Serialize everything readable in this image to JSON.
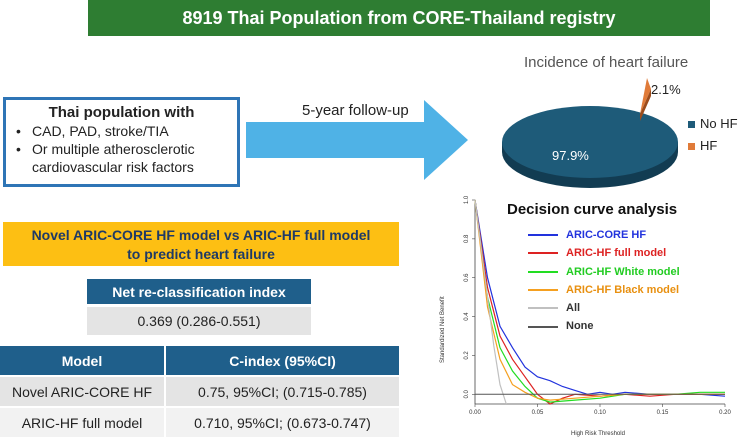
{
  "title": "8919 Thai Population from CORE-Thailand registry",
  "population": {
    "heading": "Thai population with",
    "items": [
      "CAD, PAD, stroke/TIA",
      "Or multiple atherosclerotic cardiovascular risk factors"
    ]
  },
  "followup": "5-year follow-up",
  "incidence": {
    "title": "Incidence of heart failure",
    "slices": [
      {
        "name": "No HF",
        "value": 97.9,
        "label": "97.9%",
        "color": "#1e5b79"
      },
      {
        "name": "HF",
        "value": 2.1,
        "label": "2.1%",
        "color": "#e07b39"
      }
    ]
  },
  "comparison": {
    "line1": "Novel ARIC-CORE HF model vs ARIC-HF full model",
    "line2": "to predict heart failure"
  },
  "nri": {
    "header": "Net re-classification index",
    "value": "0.369 (0.286-0.551)"
  },
  "cindex": {
    "headers": [
      "Model",
      "C-index (95%CI)"
    ],
    "rows": [
      {
        "model": "Novel ARIC-CORE HF",
        "value": "0.75, 95%CI; (0.715-0.785)"
      },
      {
        "model": "ARIC-HF full model",
        "value": "0.710, 95%CI; (0.673-0.747)"
      }
    ]
  },
  "chart_data": {
    "type": "line",
    "title": "Decision curve analysis",
    "xlabel": "High Risk Threshold",
    "ylabel": "Standardized Net Benefit",
    "xlim": [
      0,
      0.2
    ],
    "ylim": [
      -0.05,
      1.0
    ],
    "xticks": [
      0.0,
      0.05,
      0.1,
      0.15,
      0.2
    ],
    "yticks": [
      0.0,
      0.2,
      0.4,
      0.6,
      0.8,
      1.0
    ],
    "x_tick_labels": [
      "0.00",
      "0.05",
      "0.10",
      "0.15",
      "0.20"
    ],
    "y_tick_labels": [
      "0.0",
      "0.2",
      "0.4",
      "0.6",
      "0.8",
      "1.0"
    ],
    "series": [
      {
        "name": "ARIC-CORE HF",
        "color": "#2233dd",
        "x": [
          0,
          0.01,
          0.02,
          0.03,
          0.04,
          0.05,
          0.06,
          0.07,
          0.08,
          0.09,
          0.1,
          0.11,
          0.12,
          0.14,
          0.16,
          0.18,
          0.2
        ],
        "y": [
          1.0,
          0.6,
          0.35,
          0.24,
          0.14,
          0.09,
          0.07,
          0.04,
          0.02,
          0.0,
          0.01,
          0.0,
          0.01,
          0.0,
          0.0,
          0.0,
          -0.01
        ]
      },
      {
        "name": "ARIC-HF full model",
        "color": "#dd2222",
        "x": [
          0,
          0.01,
          0.02,
          0.03,
          0.04,
          0.05,
          0.06,
          0.07,
          0.08,
          0.1,
          0.12,
          0.14,
          0.16,
          0.18,
          0.2
        ],
        "y": [
          1.0,
          0.55,
          0.3,
          0.18,
          0.09,
          0.0,
          -0.05,
          -0.02,
          0.0,
          -0.01,
          0.0,
          -0.01,
          0.0,
          0.0,
          0.0
        ]
      },
      {
        "name": "ARIC-HF White model",
        "color": "#22dd22",
        "x": [
          0,
          0.01,
          0.02,
          0.03,
          0.04,
          0.05,
          0.06,
          0.08,
          0.1,
          0.12,
          0.14,
          0.16,
          0.18,
          0.2
        ],
        "y": [
          1.0,
          0.5,
          0.24,
          0.12,
          0.04,
          -0.02,
          -0.04,
          -0.03,
          -0.02,
          0.0,
          0.0,
          0.0,
          0.01,
          0.01
        ]
      },
      {
        "name": "ARIC-HF Black model",
        "color": "#f5a020",
        "x": [
          0,
          0.01,
          0.02,
          0.03,
          0.04,
          0.05,
          0.06,
          0.08,
          0.1,
          0.12,
          0.14,
          0.16,
          0.18,
          0.2
        ],
        "y": [
          1.0,
          0.45,
          0.18,
          0.05,
          0.01,
          -0.02,
          -0.03,
          -0.02,
          -0.01,
          0.0,
          0.0,
          0.0,
          0.0,
          0.0
        ]
      },
      {
        "name": "All",
        "color": "#c0c0c0",
        "x": [
          0,
          0.005,
          0.01,
          0.015,
          0.02,
          0.025
        ],
        "y": [
          1.0,
          0.75,
          0.5,
          0.25,
          0.05,
          -0.05
        ]
      },
      {
        "name": "None",
        "color": "#555555",
        "x": [
          0,
          0.2
        ],
        "y": [
          0,
          0
        ]
      }
    ]
  }
}
